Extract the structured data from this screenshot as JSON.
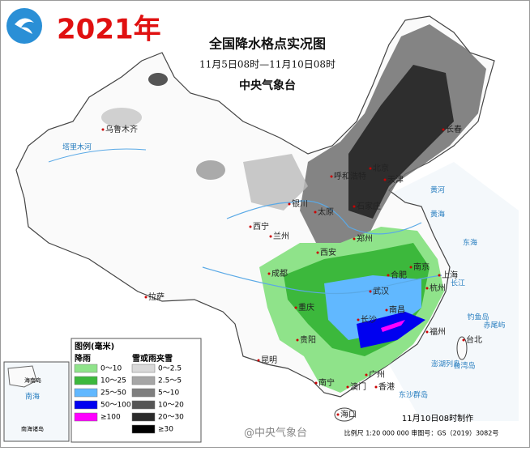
{
  "header": {
    "year": "2021年",
    "title": "全国降水格点实况图",
    "subtitle": "11月5日08时—11月10日08时",
    "agency": "中央气象台"
  },
  "legend": {
    "title": "图例(毫米)",
    "rain": {
      "heading": "降雨",
      "items": [
        {
          "label": "0～10",
          "color": "#8fe38a"
        },
        {
          "label": "10～25",
          "color": "#3cb83c"
        },
        {
          "label": "25～50",
          "color": "#61b8ff"
        },
        {
          "label": "50～100",
          "color": "#0000f0"
        },
        {
          "label": "≥100",
          "color": "#ff00ff"
        }
      ]
    },
    "snow": {
      "heading": "雪或雨夹雪",
      "items": [
        {
          "label": "0～2.5",
          "color": "#d9d9d9"
        },
        {
          "label": "2.5～5",
          "color": "#a6a6a6"
        },
        {
          "label": "5～10",
          "color": "#7f7f7f"
        },
        {
          "label": "10～20",
          "color": "#555555"
        },
        {
          "label": "20～30",
          "color": "#2b2b2b"
        },
        {
          "label": "≥30",
          "color": "#000000"
        }
      ]
    }
  },
  "cities": [
    "乌鲁木齐",
    "拉萨",
    "西宁",
    "兰州",
    "银川",
    "呼和浩特",
    "太原",
    "石家庄",
    "北京",
    "天津",
    "长春",
    "郑州",
    "西安",
    "成都",
    "重庆",
    "合肥",
    "南京",
    "上海",
    "杭州",
    "武汉",
    "南昌",
    "长沙",
    "福州",
    "贵阳",
    "昆明",
    "南宁",
    "广州",
    "澳门",
    "香港",
    "海口",
    "台北"
  ],
  "geography": [
    "塔里木河",
    "黄河",
    "长江",
    "黄海",
    "东海",
    "钓鱼岛",
    "赤尾屿",
    "台湾岛",
    "澎湖列岛",
    "东沙群岛"
  ],
  "inset": {
    "labels": [
      "海南岛",
      "南海",
      "南海诸岛"
    ]
  },
  "footer": {
    "made": "11月10日08时制作",
    "scale": "比例尺 1:20 000 000 审图号：GS（2019）3082号",
    "watermark": "@中央气象台"
  }
}
